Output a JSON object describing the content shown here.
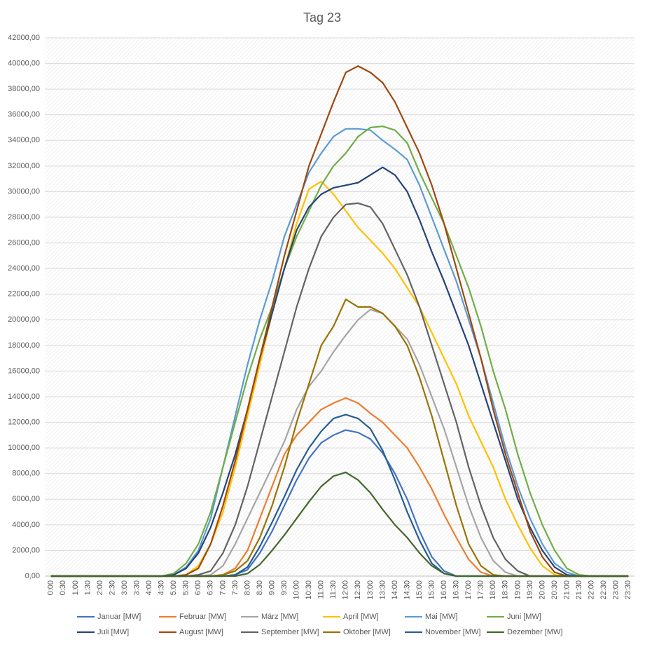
{
  "chart_data": {
    "type": "line",
    "title": "Tag 23",
    "categories": [
      "0:00",
      "0:30",
      "1:00",
      "1:30",
      "2:00",
      "2:30",
      "3:00",
      "3:30",
      "4:00",
      "4:30",
      "5:00",
      "5:30",
      "6:00",
      "6:30",
      "7:00",
      "7:30",
      "8:00",
      "8:30",
      "9:00",
      "9:30",
      "10:00",
      "10:30",
      "11:00",
      "11:30",
      "12:00",
      "12:30",
      "13:00",
      "13:30",
      "14:00",
      "14:30",
      "15:00",
      "15:30",
      "16:00",
      "16:30",
      "17:00",
      "17:30",
      "18:00",
      "18:30",
      "19:00",
      "19:30",
      "20:00",
      "20:30",
      "21:00",
      "21:30",
      "22:00",
      "22:30",
      "23:00",
      "23:30"
    ],
    "ylim": [
      0,
      42000
    ],
    "yticks": [
      {
        "value": 0,
        "label": "0,00"
      },
      {
        "value": 2000,
        "label": "2000,00"
      },
      {
        "value": 4000,
        "label": "4000,00"
      },
      {
        "value": 6000,
        "label": "6000,00"
      },
      {
        "value": 8000,
        "label": "8000,00"
      },
      {
        "value": 10000,
        "label": "10000,00"
      },
      {
        "value": 12000,
        "label": "12000,00"
      },
      {
        "value": 14000,
        "label": "14000,00"
      },
      {
        "value": 16000,
        "label": "16000,00"
      },
      {
        "value": 18000,
        "label": "18000,00"
      },
      {
        "value": 20000,
        "label": "20000,00"
      },
      {
        "value": 22000,
        "label": "22000,00"
      },
      {
        "value": 24000,
        "label": "24000,00"
      },
      {
        "value": 26000,
        "label": "26000,00"
      },
      {
        "value": 28000,
        "label": "28000,00"
      },
      {
        "value": 30000,
        "label": "30000,00"
      },
      {
        "value": 32000,
        "label": "32000,00"
      },
      {
        "value": 34000,
        "label": "34000,00"
      },
      {
        "value": 36000,
        "label": "36000,00"
      },
      {
        "value": 38000,
        "label": "38000,00"
      },
      {
        "value": 40000,
        "label": "40000,00"
      },
      {
        "value": 42000,
        "label": "42000,00"
      }
    ],
    "grid": true,
    "legend": "bottom",
    "series": [
      {
        "name": "Januar [MW]",
        "color": "#4472c4",
        "values": [
          0,
          0,
          0,
          0,
          0,
          0,
          0,
          0,
          0,
          0,
          0,
          0,
          0,
          0,
          0,
          100,
          500,
          1800,
          3500,
          5500,
          7500,
          9200,
          10400,
          11000,
          11400,
          11200,
          10700,
          9600,
          8000,
          6000,
          3500,
          1500,
          400,
          0,
          0,
          0,
          0,
          0,
          0,
          0,
          0,
          0,
          0,
          0,
          0,
          0,
          0,
          0
        ]
      },
      {
        "name": "Februar [MW]",
        "color": "#ed7d31",
        "values": [
          0,
          0,
          0,
          0,
          0,
          0,
          0,
          0,
          0,
          0,
          0,
          0,
          0,
          0,
          100,
          600,
          2000,
          4500,
          7000,
          9500,
          11000,
          12000,
          13000,
          13500,
          13900,
          13500,
          12700,
          12000,
          11000,
          10000,
          8500,
          6800,
          4800,
          3000,
          1300,
          300,
          0,
          0,
          0,
          0,
          0,
          0,
          0,
          0,
          0,
          0,
          0,
          0
        ]
      },
      {
        "name": "März [MW]",
        "color": "#a5a5a5",
        "values": [
          0,
          0,
          0,
          0,
          0,
          0,
          0,
          0,
          0,
          0,
          0,
          0,
          0,
          100,
          800,
          2500,
          4500,
          6500,
          8500,
          10500,
          13000,
          14800,
          16000,
          17500,
          18800,
          20000,
          20800,
          20500,
          19500,
          18500,
          16500,
          14000,
          11500,
          8500,
          5500,
          3000,
          1200,
          300,
          0,
          0,
          0,
          0,
          0,
          0,
          0,
          0,
          0,
          0
        ]
      },
      {
        "name": "April [MW]",
        "color": "#ffc000",
        "values": [
          0,
          0,
          0,
          0,
          0,
          0,
          0,
          0,
          0,
          0,
          0,
          100,
          800,
          2500,
          5000,
          8500,
          12500,
          16500,
          20500,
          24000,
          27500,
          30200,
          30800,
          29800,
          28500,
          27200,
          26200,
          25200,
          24000,
          22500,
          21000,
          19000,
          17000,
          15000,
          12500,
          10500,
          8500,
          6000,
          4000,
          2200,
          800,
          100,
          0,
          0,
          0,
          0,
          0,
          0
        ]
      },
      {
        "name": "Mai [MW]",
        "color": "#5b9bd5",
        "values": [
          0,
          0,
          0,
          0,
          0,
          0,
          0,
          0,
          0,
          0,
          100,
          700,
          2000,
          4500,
          8500,
          12500,
          16500,
          20000,
          23000,
          26500,
          29000,
          31500,
          33000,
          34300,
          34900,
          34900,
          34800,
          34000,
          33300,
          32500,
          30500,
          28000,
          25500,
          23000,
          20000,
          17000,
          13500,
          10000,
          7000,
          4500,
          2500,
          1000,
          300,
          0,
          0,
          0,
          0,
          0
        ]
      },
      {
        "name": "Juni [MW]",
        "color": "#70ad47",
        "values": [
          0,
          0,
          0,
          0,
          0,
          0,
          0,
          0,
          0,
          0,
          200,
          1000,
          2500,
          5000,
          8500,
          12000,
          15500,
          18500,
          21000,
          24000,
          26500,
          28500,
          30500,
          32000,
          33000,
          34300,
          35000,
          35100,
          34800,
          33800,
          31500,
          29500,
          27500,
          25000,
          22500,
          19500,
          16000,
          13000,
          9500,
          6500,
          4000,
          2000,
          600,
          100,
          0,
          0,
          0,
          0
        ]
      },
      {
        "name": "Juli [MW]",
        "color": "#264478",
        "values": [
          0,
          0,
          0,
          0,
          0,
          0,
          0,
          0,
          0,
          0,
          100,
          600,
          1800,
          3800,
          6500,
          9500,
          13000,
          17000,
          20500,
          24000,
          27000,
          28800,
          29800,
          30300,
          30500,
          30700,
          31300,
          31900,
          31300,
          30000,
          27800,
          25300,
          23000,
          20500,
          18000,
          15000,
          12000,
          9000,
          6000,
          3800,
          2000,
          700,
          100,
          0,
          0,
          0,
          0,
          0
        ]
      },
      {
        "name": "August [MW]",
        "color": "#9e480e",
        "values": [
          0,
          0,
          0,
          0,
          0,
          0,
          0,
          0,
          0,
          0,
          0,
          100,
          600,
          2500,
          5500,
          9000,
          13000,
          17000,
          21000,
          25000,
          28500,
          32000,
          34500,
          37000,
          39300,
          39800,
          39300,
          38500,
          37000,
          35000,
          33000,
          30500,
          27500,
          24000,
          20500,
          17000,
          13000,
          9500,
          6500,
          3500,
          1500,
          300,
          0,
          0,
          0,
          0,
          0,
          0
        ]
      },
      {
        "name": "September [MW]",
        "color": "#636363",
        "values": [
          0,
          0,
          0,
          0,
          0,
          0,
          0,
          0,
          0,
          0,
          0,
          0,
          100,
          400,
          1800,
          4000,
          7000,
          10500,
          14000,
          17500,
          21000,
          24000,
          26500,
          28000,
          29000,
          29100,
          28800,
          27500,
          25500,
          23500,
          21000,
          18000,
          15000,
          12000,
          8500,
          5500,
          3000,
          1300,
          400,
          0,
          0,
          0,
          0,
          0,
          0,
          0,
          0,
          0
        ]
      },
      {
        "name": "Oktober [MW]",
        "color": "#997300",
        "values": [
          0,
          0,
          0,
          0,
          0,
          0,
          0,
          0,
          0,
          0,
          0,
          0,
          0,
          0,
          100,
          400,
          1200,
          3000,
          5500,
          8500,
          12000,
          15000,
          18000,
          19500,
          21600,
          21000,
          21000,
          20500,
          19500,
          18000,
          15500,
          12500,
          9000,
          5500,
          2500,
          800,
          100,
          0,
          0,
          0,
          0,
          0,
          0,
          0,
          0,
          0,
          0,
          0
        ]
      },
      {
        "name": "November [MW]",
        "color": "#255e91",
        "values": [
          0,
          0,
          0,
          0,
          0,
          0,
          0,
          0,
          0,
          0,
          0,
          0,
          0,
          0,
          0,
          100,
          700,
          2300,
          4200,
          6200,
          8300,
          10000,
          11300,
          12300,
          12600,
          12300,
          11500,
          9800,
          7500,
          5000,
          2800,
          1000,
          200,
          0,
          0,
          0,
          0,
          0,
          0,
          0,
          0,
          0,
          0,
          0,
          0,
          0,
          0,
          0
        ]
      },
      {
        "name": "Dezember [MW]",
        "color": "#43682b",
        "values": [
          0,
          0,
          0,
          0,
          0,
          0,
          0,
          0,
          0,
          0,
          0,
          0,
          0,
          0,
          0,
          0,
          200,
          900,
          2000,
          3200,
          4500,
          5800,
          7000,
          7800,
          8100,
          7500,
          6500,
          5200,
          4000,
          3000,
          1800,
          800,
          200,
          0,
          0,
          0,
          0,
          0,
          0,
          0,
          0,
          0,
          0,
          0,
          0,
          0,
          0,
          0
        ]
      }
    ]
  }
}
